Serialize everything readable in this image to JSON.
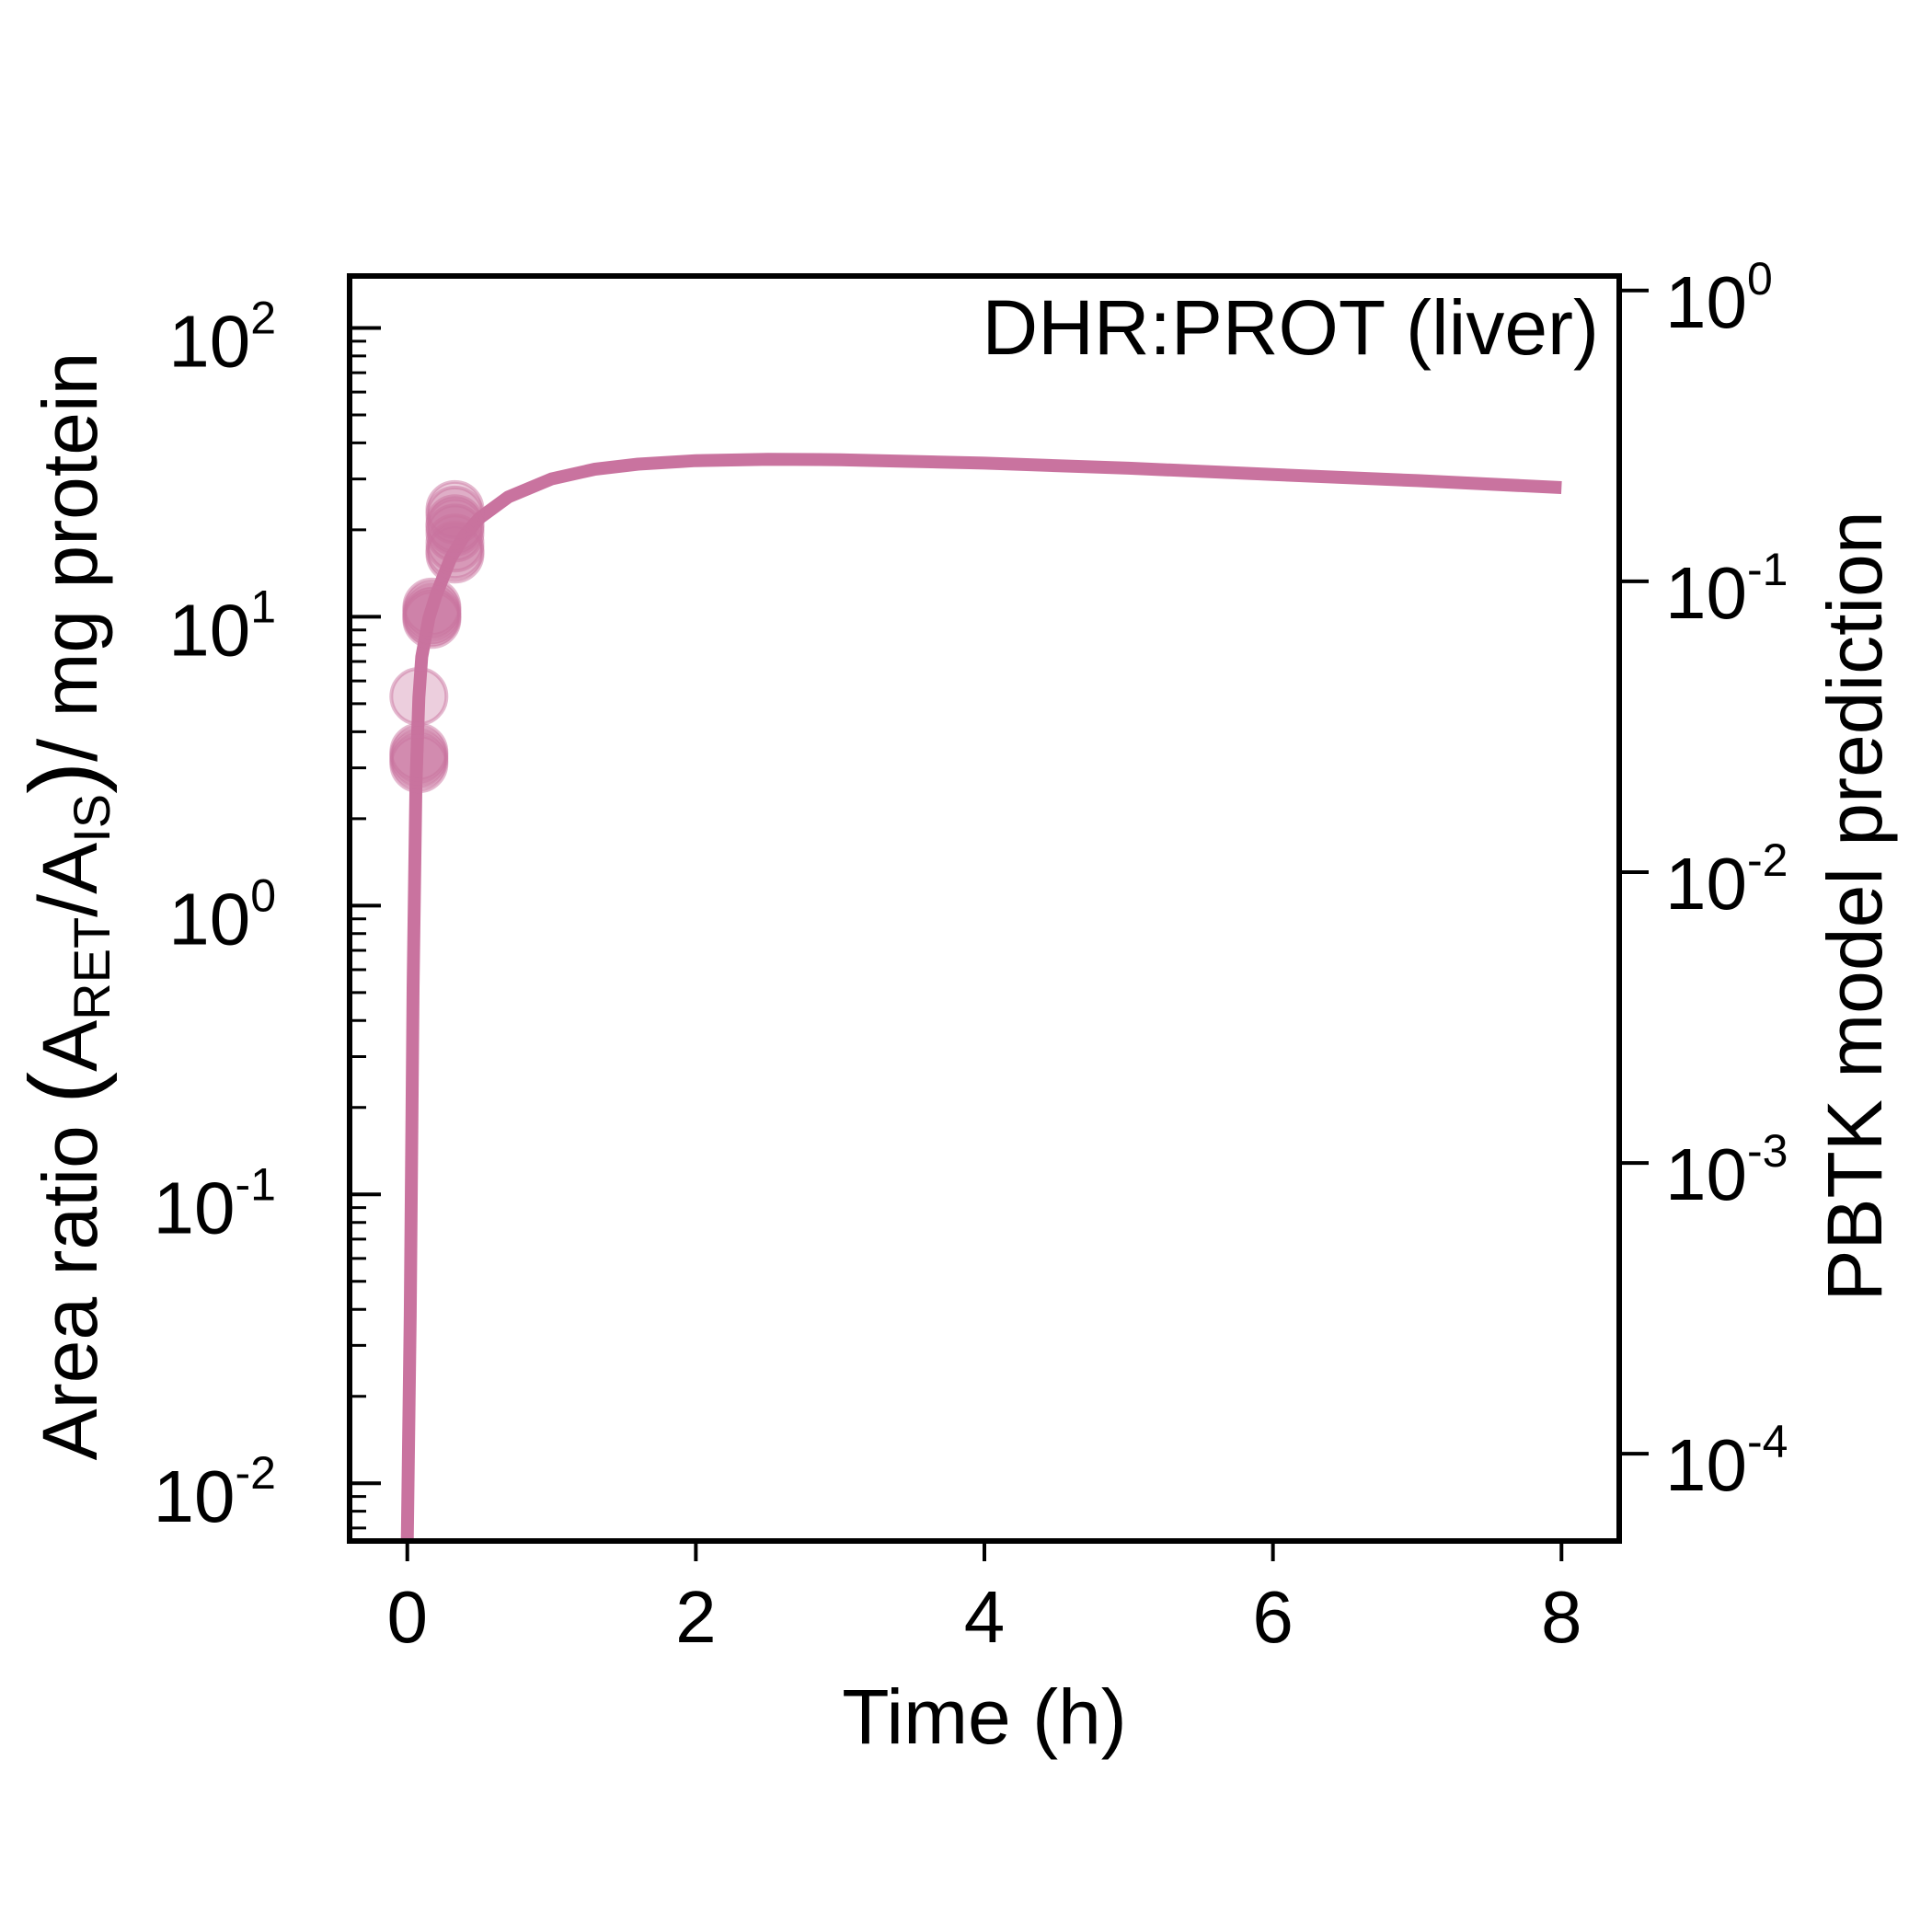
{
  "chart_data": {
    "type": "scatter",
    "annotation": "DHR:PROT (liver)",
    "xlabel": "Time (h)",
    "ylabel": "Area ratio (A_RET/A_IS)/mg protein",
    "ylabel_parts": {
      "lead": "Area ratio ",
      "a1": "A",
      "sub1": "RET",
      "a2": "A",
      "sub2": "IS",
      "tail": " mg protein"
    },
    "y2label": "PBTK model prediction",
    "xlim": [
      -0.4,
      8.4
    ],
    "ylim_log10": [
      -2.2,
      2.18
    ],
    "y2lim_log10": [
      -4.3,
      0.05
    ],
    "y_scale": "log",
    "y2_scale": "log",
    "x_ticks": [
      {
        "value": 0,
        "label": "0"
      },
      {
        "value": 2,
        "label": "2"
      },
      {
        "value": 4,
        "label": "4"
      },
      {
        "value": 6,
        "label": "6"
      },
      {
        "value": 8,
        "label": "8"
      }
    ],
    "y_ticks": [
      {
        "exp": -2,
        "base": "10",
        "sup": "-2"
      },
      {
        "exp": -1,
        "base": "10",
        "sup": "-1"
      },
      {
        "exp": 0,
        "base": "10",
        "sup": "0"
      },
      {
        "exp": 1,
        "base": "10",
        "sup": "1"
      },
      {
        "exp": 2,
        "base": "10",
        "sup": "2"
      }
    ],
    "y2_ticks": [
      {
        "exp": -4,
        "base": "10",
        "sup": "-4"
      },
      {
        "exp": -3,
        "base": "10",
        "sup": "-3"
      },
      {
        "exp": -2,
        "base": "10",
        "sup": "-2"
      },
      {
        "exp": -1,
        "base": "10",
        "sup": "-1"
      },
      {
        "exp": 0,
        "base": "10",
        "sup": "0"
      }
    ],
    "grid": false,
    "colors": {
      "series": "#c9739f",
      "points": "#c9739f"
    },
    "series": [
      {
        "kind": "line",
        "axis": "right",
        "x": [
          0.0,
          0.02,
          0.04,
          0.06,
          0.08,
          0.1,
          0.15,
          0.2,
          0.3,
          0.4,
          0.5,
          0.7,
          1.0,
          1.3,
          1.6,
          2.0,
          2.5,
          3.0,
          4.0,
          5.0,
          6.0,
          7.0,
          8.0
        ],
        "y": [
          4e-05,
          0.0003,
          0.004,
          0.02,
          0.04,
          0.055,
          0.075,
          0.09,
          0.12,
          0.145,
          0.165,
          0.195,
          0.225,
          0.243,
          0.253,
          0.26,
          0.263,
          0.262,
          0.255,
          0.245,
          0.233,
          0.222,
          0.21
        ]
      },
      {
        "kind": "scatter",
        "axis": "left",
        "x": [
          0.08,
          0.08,
          0.08,
          0.08,
          0.08,
          0.17,
          0.17,
          0.17,
          0.17,
          0.17,
          0.33,
          0.33,
          0.33,
          0.33,
          0.33,
          0.33,
          0.33,
          0.33
        ],
        "y": [
          5.3,
          3.4,
          3.2,
          3.3,
          3.1,
          10.5,
          10.0,
          10.8,
          9.8,
          10.2,
          19.5,
          21.0,
          22.5,
          23.5,
          18.0,
          16.5,
          17.0,
          20.5
        ]
      }
    ]
  }
}
